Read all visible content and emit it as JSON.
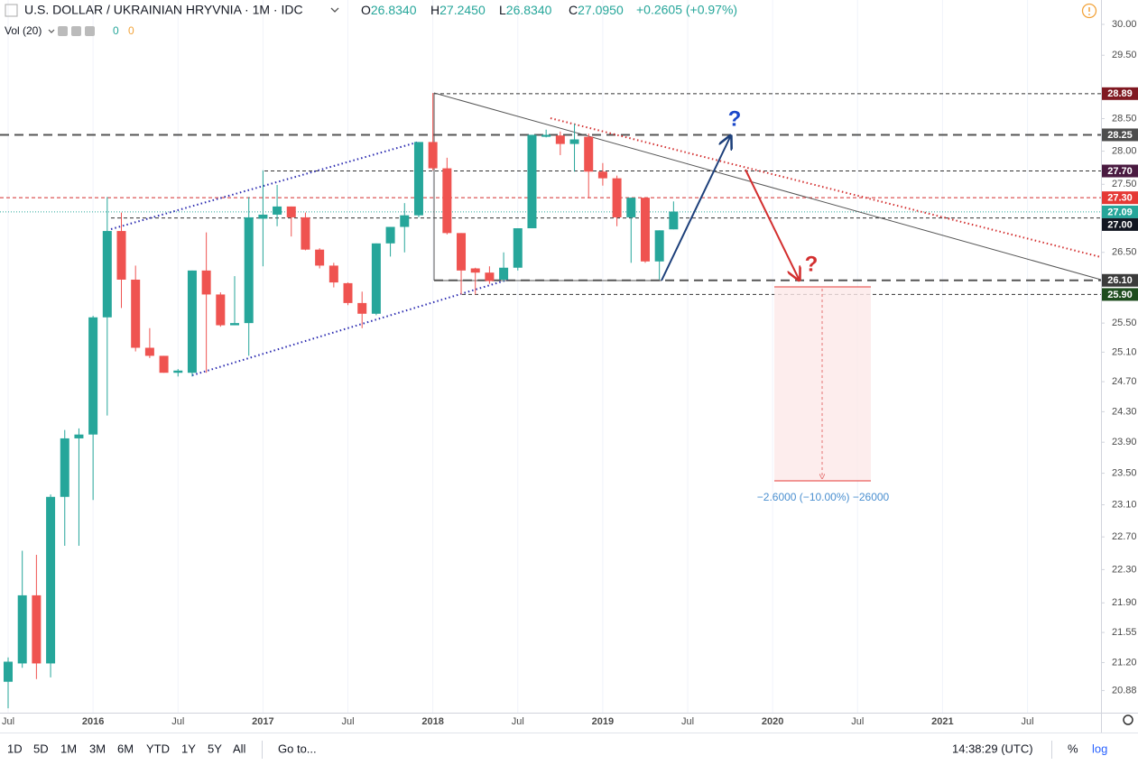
{
  "header": {
    "symbol": "U.S. DOLLAR / UKRAINIAN HRYVNIA · 1M · IDC",
    "ohlc": [
      {
        "key": "O",
        "value": "26.8340"
      },
      {
        "key": "H",
        "value": "27.2450"
      },
      {
        "key": "L",
        "value": "26.8340"
      },
      {
        "key": "C",
        "value": "27.0950"
      }
    ],
    "change": "+0.2605 (+0.97%)",
    "volume": {
      "name": "Vol (20)",
      "values": [
        "0",
        "0"
      ]
    }
  },
  "toolbar": {
    "ranges": [
      "1D",
      "5D",
      "1M",
      "3M",
      "6M",
      "YTD",
      "1Y",
      "5Y",
      "All"
    ],
    "goto": "Go to...",
    "time": "14:38:29 (UTC)",
    "percent": "%",
    "log": "log"
  },
  "chart_data": {
    "type": "candlestick",
    "log_scale": true,
    "grid": true,
    "up_color": "#26a69a",
    "down_color": "#ef5350",
    "categories": [
      "Jul",
      null,
      null,
      null,
      null,
      null,
      "2016",
      null,
      null,
      null,
      null,
      null,
      "Jul",
      null,
      null,
      null,
      null,
      null,
      "2017",
      null,
      null,
      null,
      null,
      null,
      "Jul",
      null,
      null,
      null,
      null,
      null,
      "2018",
      null,
      null,
      null,
      null,
      null,
      "Jul",
      null,
      null,
      null,
      null,
      null,
      "2019",
      null,
      null,
      null,
      null,
      null,
      "Jul",
      null,
      null,
      null,
      null,
      null,
      "2020",
      null,
      null,
      null,
      null,
      null,
      "Jul",
      null,
      null,
      null,
      null,
      null,
      "2021",
      null,
      null,
      null,
      null,
      null,
      "Jul",
      null,
      null,
      null,
      null,
      null
    ],
    "open": [
      20.98,
      21.19,
      21.99,
      21.19,
      23.2,
      23.95,
      24.0,
      25.58,
      26.81,
      26.11,
      25.16,
      25.05,
      24.82,
      24.82,
      26.24,
      25.9,
      25.47,
      25.5,
      26.99,
      27.05,
      27.17,
      27.01,
      26.54,
      26.31,
      26.06,
      25.78,
      25.63,
      26.63,
      26.87,
      27.04,
      28.14,
      27.74,
      26.78,
      26.27,
      26.21,
      26.11,
      26.28,
      26.85,
      28.22,
      28.24,
      28.11,
      28.22,
      27.69,
      27.59,
      27.01,
      27.3,
      26.37,
      26.834,
      null,
      null,
      null,
      null,
      null,
      null,
      null,
      null,
      null,
      null,
      null,
      null,
      null,
      null,
      null,
      null,
      null,
      null,
      null,
      null,
      null,
      null,
      null,
      null,
      null,
      null,
      null,
      null,
      null,
      null
    ],
    "high": [
      21.26,
      22.53,
      22.48,
      23.23,
      24.06,
      24.08,
      25.6,
      27.31,
      27.08,
      26.31,
      25.43,
      25.05,
      24.87,
      26.24,
      26.79,
      25.93,
      26.16,
      27.31,
      27.71,
      27.49,
      27.17,
      27.08,
      26.56,
      26.35,
      26.07,
      25.94,
      26.63,
      26.87,
      27.22,
      28.14,
      28.9,
      27.9,
      26.78,
      26.28,
      26.3,
      26.5,
      26.85,
      28.25,
      28.33,
      28.3,
      28.42,
      28.27,
      27.82,
      27.63,
      27.3,
      27.3,
      26.82,
      27.245,
      null,
      null,
      null,
      null,
      null,
      null,
      null,
      null,
      null,
      null,
      null,
      null,
      null,
      null,
      null,
      null,
      null,
      null,
      null,
      null,
      null,
      null,
      null,
      null,
      null,
      null,
      null,
      null,
      null,
      null
    ],
    "low": [
      20.68,
      21.14,
      21.01,
      21.03,
      22.59,
      22.59,
      23.16,
      24.25,
      25.71,
      25.11,
      25.02,
      24.82,
      24.77,
      24.77,
      24.82,
      25.45,
      25.47,
      25.05,
      26.3,
      26.88,
      26.73,
      26.53,
      26.27,
      26.0,
      25.75,
      25.43,
      25.61,
      26.44,
      26.5,
      27.01,
      27.71,
      26.76,
      25.9,
      25.9,
      26.05,
      26.09,
      26.24,
      26.85,
      28.21,
      27.94,
      27.69,
      27.29,
      27.48,
      26.88,
      26.35,
      26.35,
      26.11,
      26.834,
      null,
      null,
      null,
      null,
      null,
      null,
      null,
      null,
      null,
      null,
      null,
      null,
      null,
      null,
      null,
      null,
      null,
      null,
      null,
      null,
      null,
      null,
      null,
      null,
      null,
      null,
      null,
      null,
      null,
      null
    ],
    "close": [
      21.21,
      21.99,
      21.19,
      23.2,
      23.95,
      24.0,
      25.58,
      26.81,
      26.11,
      25.16,
      25.05,
      24.82,
      24.85,
      26.24,
      25.9,
      25.47,
      25.5,
      27.01,
      27.05,
      27.17,
      27.01,
      26.54,
      26.31,
      26.07,
      25.78,
      25.63,
      26.63,
      26.87,
      27.04,
      28.14,
      27.74,
      26.78,
      26.24,
      26.21,
      26.09,
      26.28,
      26.85,
      28.25,
      28.25,
      28.11,
      28.18,
      27.69,
      27.59,
      27.01,
      27.3,
      26.37,
      26.82,
      27.095,
      null,
      null,
      null,
      null,
      null,
      null,
      null,
      null,
      null,
      null,
      null,
      null,
      null,
      null,
      null,
      null,
      null,
      null,
      null,
      null,
      null,
      null,
      null,
      null,
      null,
      null,
      null,
      null,
      null,
      null
    ],
    "ylim": [
      20.63,
      30.4
    ],
    "yticks": [
      20.88,
      21.55,
      {
        "value": 21.2,
        "label": "21.20"
      },
      {
        "value": 21.9,
        "label": "21.90"
      },
      {
        "value": 22.3,
        "label": "22.30"
      },
      {
        "value": 22.7,
        "label": "22.70"
      },
      {
        "value": 23.1,
        "label": "23.10"
      },
      {
        "value": 23.5,
        "label": "23.50"
      },
      {
        "value": 23.9,
        "label": "23.90"
      },
      {
        "value": 24.3,
        "label": "24.30"
      },
      {
        "value": 24.7,
        "label": "24.70"
      },
      {
        "value": 25.1,
        "label": "25.10"
      },
      {
        "value": 25.5,
        "label": "25.50"
      },
      {
        "value": 26.5,
        "label": "26.50"
      },
      {
        "value": 27.5,
        "label": "27.50"
      },
      {
        "value": 28,
        "label": "28.00"
      },
      {
        "value": 28.5,
        "label": "28.50"
      },
      {
        "value": 29.5,
        "label": "29.50"
      },
      {
        "value": 30,
        "label": "30.00"
      }
    ],
    "levels": [
      {
        "value": 28.89,
        "color": "#801922"
      },
      {
        "value": 28.25,
        "label": "28.25",
        "color": "#4d4d4d"
      },
      {
        "value": 27.7,
        "label": "27.70",
        "color": "#4a1a40"
      },
      {
        "value": 27.3,
        "label": "27.30",
        "color": "#e53935"
      },
      {
        "value": 27.09,
        "color": "#26a69a"
      },
      {
        "value": 27,
        "label": "27.00",
        "color": "#131722"
      },
      {
        "value": 26.1,
        "label": "26.10",
        "color": "#3c3c3c"
      },
      {
        "value": 25.9,
        "label": "25.90",
        "color": "#1e4d1e"
      }
    ],
    "annotations": {
      "up_question": "?",
      "down_question": "?",
      "measure": "−2.6000 (−10.00%) −26000"
    }
  }
}
